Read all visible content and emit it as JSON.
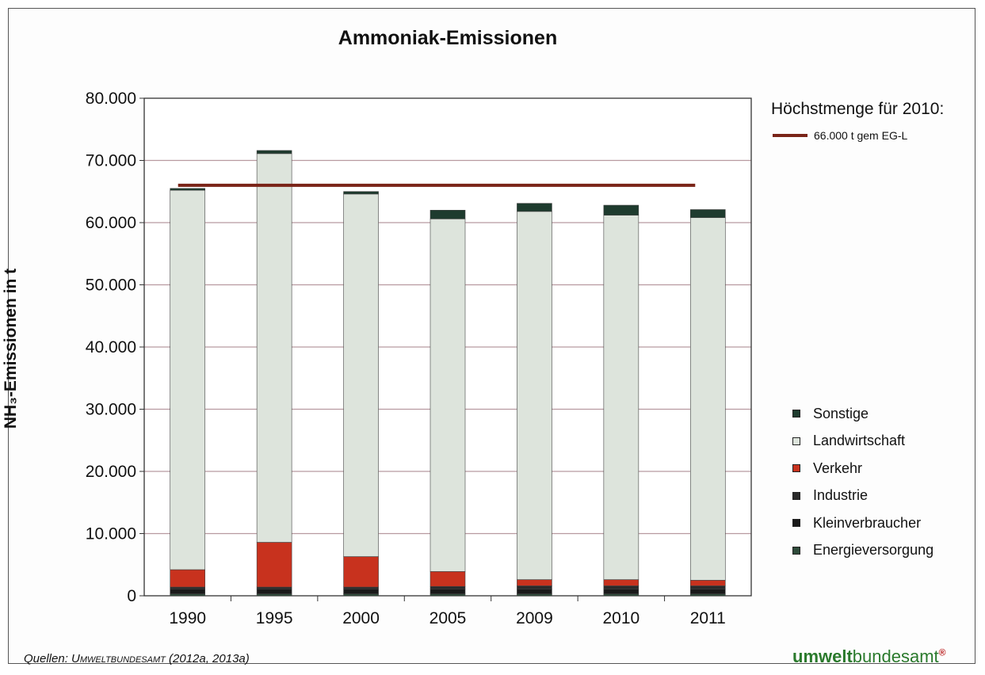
{
  "chart_data": {
    "type": "bar",
    "stacked": true,
    "title": "Ammoniak-Emissionen",
    "ylabel": "NH₃-Emissionen in t",
    "xlabel": "",
    "ylim": [
      0,
      80000
    ],
    "yticks": [
      0,
      10000,
      20000,
      30000,
      40000,
      50000,
      60000,
      70000,
      80000
    ],
    "ytick_labels": [
      "0",
      "10.000",
      "20.000",
      "30.000",
      "40.000",
      "50.000",
      "60.000",
      "70.000",
      "80.000"
    ],
    "grid": true,
    "categories": [
      "1990",
      "1995",
      "2000",
      "2005",
      "2009",
      "2010",
      "2011"
    ],
    "series": [
      {
        "name": "Energieversorgung",
        "color": "#2e4a3a",
        "values": [
          300,
          300,
          300,
          300,
          300,
          300,
          300
        ]
      },
      {
        "name": "Kleinverbraucher",
        "color": "#1a1a1a",
        "values": [
          800,
          800,
          800,
          800,
          800,
          800,
          800
        ]
      },
      {
        "name": "Industrie",
        "color": "#2a2a2a",
        "values": [
          300,
          300,
          300,
          400,
          500,
          500,
          500
        ]
      },
      {
        "name": "Verkehr",
        "color": "#c8321e",
        "values": [
          2800,
          7200,
          4900,
          2400,
          1000,
          1000,
          900
        ]
      },
      {
        "name": "Landwirtschaft",
        "color": "#dde4dc",
        "values": [
          61000,
          62500,
          58300,
          56700,
          59200,
          58600,
          58300
        ]
      },
      {
        "name": "Sonstige",
        "color": "#1e3b2e",
        "values": [
          300,
          500,
          400,
          1400,
          1300,
          1600,
          1300
        ]
      }
    ],
    "reference_line": {
      "value": 66000,
      "color": "#7a2418",
      "from": "1990",
      "to": "2011"
    },
    "legend_position": "right"
  },
  "limit_legend": {
    "title": "Höchstmenge für 2010:",
    "entry": "66.000 t gem EG-L"
  },
  "legend_order": [
    "Sonstige",
    "Landwirtschaft",
    "Verkehr",
    "Industrie",
    "Kleinverbraucher",
    "Energieversorgung"
  ],
  "source": {
    "prefix": "Quellen: ",
    "org": "Umweltbundesamt",
    "suffix": " (2012a, 2013a)"
  },
  "brand": {
    "bold": "umwelt",
    "rest": "bundesamt",
    "mark": "®"
  }
}
